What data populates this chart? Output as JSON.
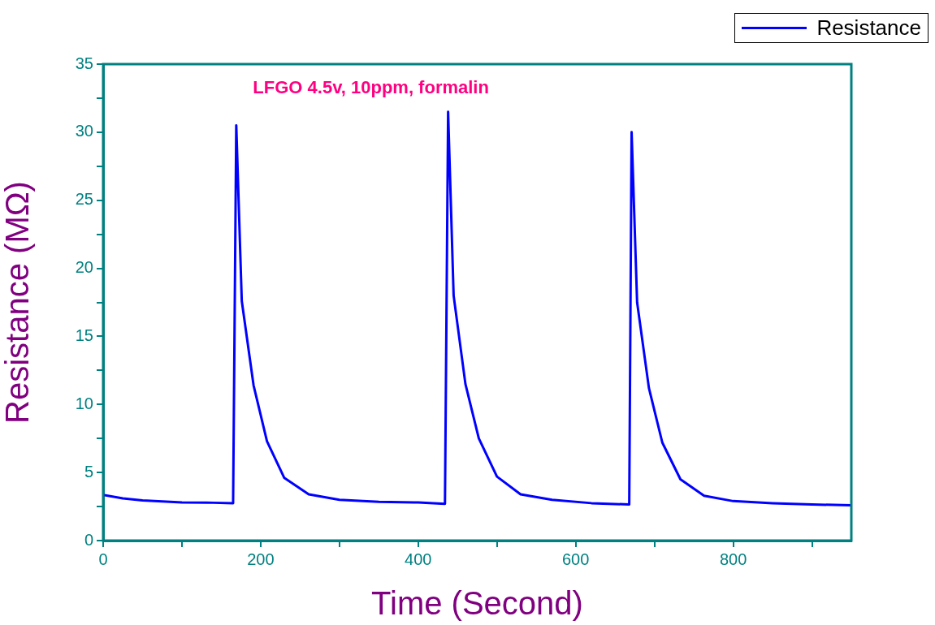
{
  "chart_data": {
    "type": "line",
    "title": "LFGO 4.5v, 10ppm, formalin",
    "xlabel": "Time (Second)",
    "ylabel": "Resistance (MΩ)",
    "legend": "top right",
    "grid": false,
    "marker": "none",
    "line_style": "solid",
    "xlim": [
      0,
      950
    ],
    "ylim": [
      0,
      35
    ],
    "xticks": [
      0,
      {
        "value": 100,
        "label": null
      },
      200,
      {
        "value": 300,
        "label": null
      },
      400,
      {
        "value": 500,
        "label": null
      },
      600,
      {
        "value": 700,
        "label": null
      },
      800,
      {
        "value": 900,
        "label": null
      }
    ],
    "yticks": [
      0,
      {
        "value": 2.5,
        "label": null
      },
      5,
      {
        "value": 7.5,
        "label": null
      },
      10,
      {
        "value": 12.5,
        "label": null
      },
      15,
      {
        "value": 17.5,
        "label": null
      },
      20,
      {
        "value": 22.5,
        "label": null
      },
      25,
      {
        "value": 27.5,
        "label": null
      },
      30,
      {
        "value": 32.5,
        "label": null
      },
      35
    ],
    "series": [
      {
        "name": "Resistance",
        "color": "#0000ff",
        "x": [
          0,
          25,
          50,
          100,
          140,
          165,
          169,
          176,
          191,
          208,
          230,
          261,
          300,
          350,
          400,
          434,
          438,
          445,
          460,
          477,
          500,
          530,
          570,
          620,
          668,
          671,
          678,
          693,
          710,
          733,
          763,
          800,
          850,
          900,
          950
        ],
        "values": [
          3.35,
          3.1,
          2.95,
          2.8,
          2.78,
          2.75,
          30.5,
          17.6,
          11.4,
          7.3,
          4.6,
          3.4,
          3.0,
          2.85,
          2.8,
          2.7,
          31.5,
          18,
          11.5,
          7.5,
          4.7,
          3.4,
          3.0,
          2.75,
          2.65,
          30.0,
          17.5,
          11.2,
          7.2,
          4.5,
          3.3,
          2.9,
          2.75,
          2.65,
          2.6
        ]
      }
    ]
  }
}
